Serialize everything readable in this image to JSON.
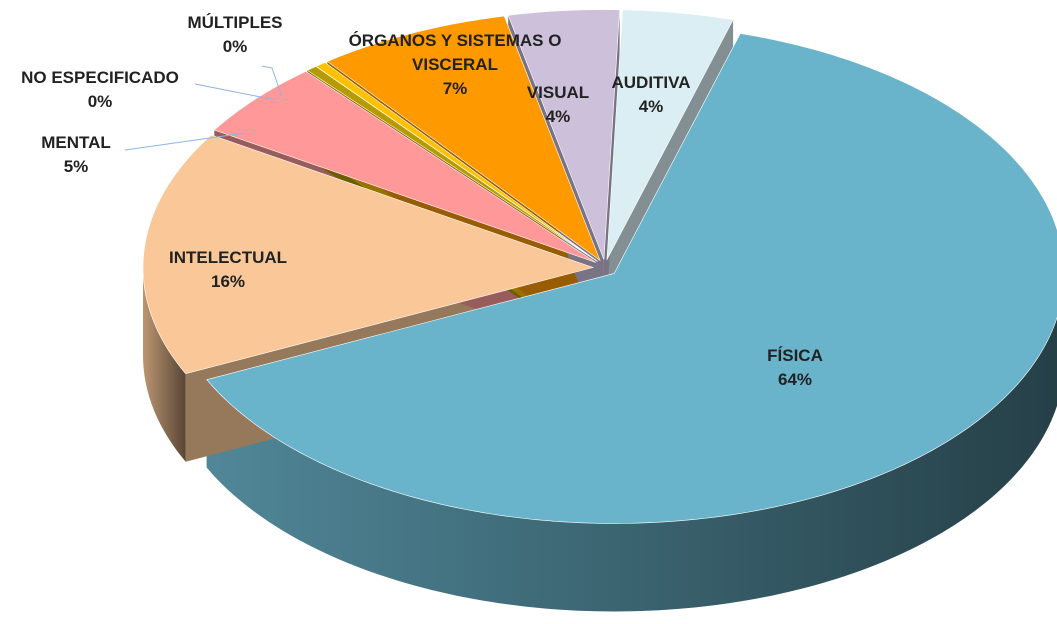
{
  "chart_data": {
    "type": "pie",
    "categories": [
      "AUDITIVA",
      "FÍSICA",
      "INTELECTUAL",
      "MENTAL",
      "NO ESPECIFICADO",
      "MÚLTIPLES",
      "ÓRGANOS Y SISTEMAS O VISCERAL",
      "VISUAL"
    ],
    "values": [
      4,
      64,
      16,
      5,
      0.4,
      0.4,
      7,
      4
    ],
    "value_labels": [
      "4%",
      "64%",
      "16%",
      "5%",
      "0%",
      "0%",
      "7%",
      "4%"
    ],
    "colors": [
      "#daeef3",
      "#6ab4cb",
      "#fac898",
      "#ff9999",
      "#b59a00",
      "#ffc000",
      "#ff9900",
      "#ccc0da"
    ]
  }
}
